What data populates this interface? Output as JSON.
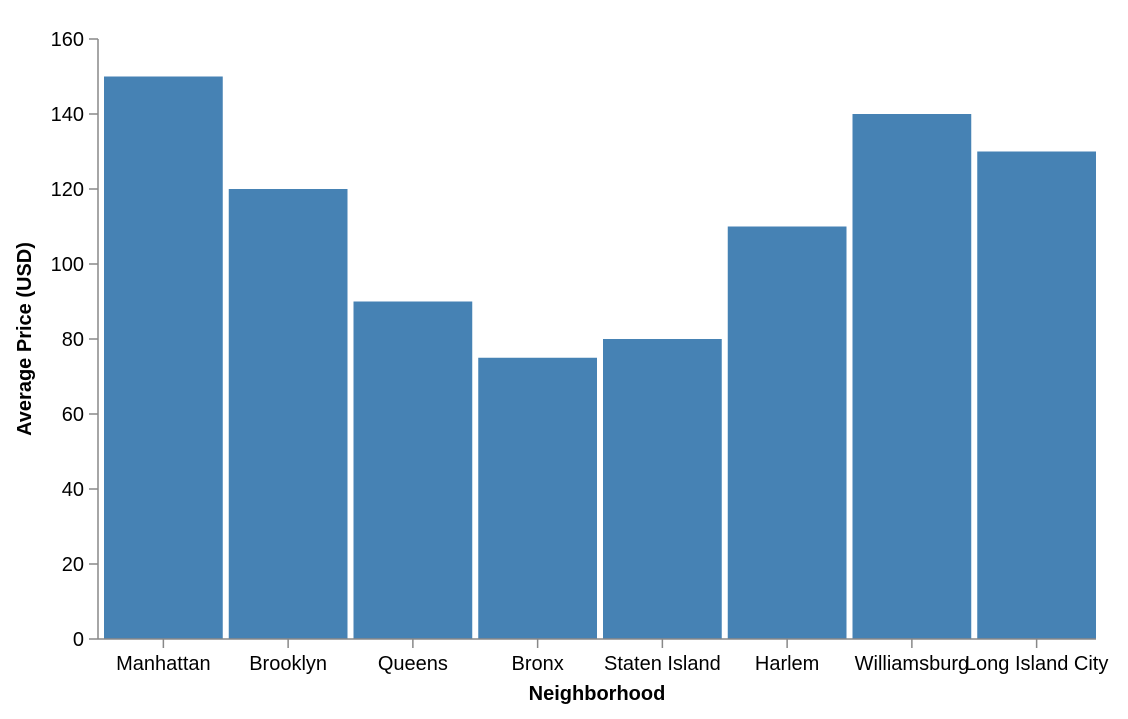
{
  "chart_data": {
    "type": "bar",
    "xlabel": "Neighborhood",
    "ylabel": "Average Price (USD)",
    "categories": [
      "Manhattan",
      "Brooklyn",
      "Queens",
      "Bronx",
      "Staten Island",
      "Harlem",
      "Williamsburg",
      "Long Island City"
    ],
    "values": [
      150,
      120,
      90,
      75,
      80,
      110,
      140,
      130
    ],
    "ylim": [
      0,
      160
    ],
    "yticks": [
      0,
      20,
      40,
      60,
      80,
      100,
      120,
      140,
      160
    ],
    "grid": false,
    "bar_color": "#4682b4",
    "axis_color": "#888888"
  }
}
